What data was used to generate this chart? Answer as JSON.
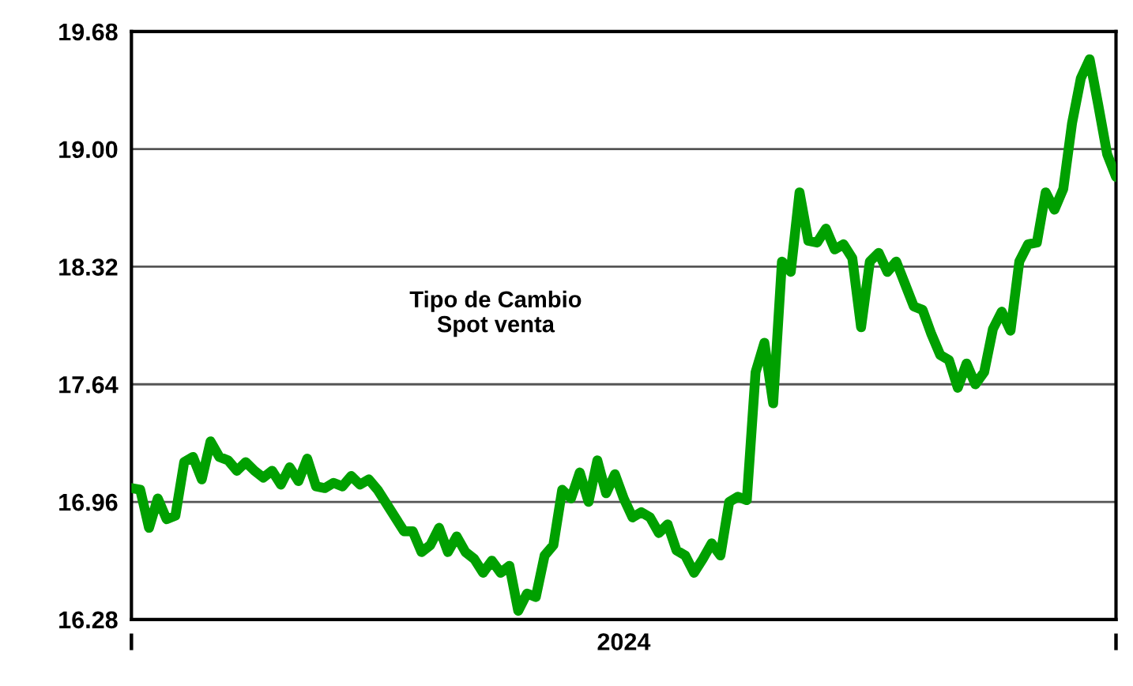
{
  "chart_data": {
    "type": "line",
    "annotations": [
      "Tipo de Cambio\nSpot venta"
    ],
    "categories": [
      "I",
      null,
      null,
      null,
      null,
      null,
      null,
      null,
      null,
      null,
      null,
      null,
      null,
      null,
      null,
      null,
      null,
      null,
      null,
      null,
      null,
      null,
      null,
      null,
      null,
      null,
      null,
      null,
      null,
      null,
      null,
      null,
      null,
      null,
      null,
      null,
      null,
      null,
      null,
      null,
      null,
      null,
      null,
      null,
      null,
      null,
      null,
      null,
      null,
      null,
      null,
      null,
      null,
      null,
      null,
      null,
      "2024",
      null,
      null,
      null,
      null,
      null,
      null,
      null,
      null,
      null,
      null,
      null,
      null,
      null,
      null,
      null,
      null,
      null,
      null,
      null,
      null,
      null,
      null,
      null,
      null,
      null,
      null,
      null,
      null,
      null,
      null,
      null,
      null,
      null,
      null,
      null,
      null,
      null,
      null,
      null,
      null,
      null,
      null,
      null,
      null,
      null,
      null,
      null,
      null,
      null,
      null,
      null,
      null,
      null,
      null,
      null,
      "I"
    ],
    "series": [
      {
        "color": "#00a000",
        "values": [
          17.04,
          17.03,
          16.81,
          16.98,
          16.86,
          16.88,
          17.19,
          17.22,
          17.09,
          17.31,
          17.22,
          17.2,
          17.14,
          17.19,
          17.14,
          17.1,
          17.14,
          17.06,
          17.16,
          17.08,
          17.21,
          17.05,
          17.04,
          17.07,
          17.05,
          17.11,
          17.06,
          17.09,
          17.03,
          16.95,
          16.87,
          16.79,
          16.79,
          16.67,
          16.71,
          16.81,
          16.67,
          16.76,
          16.67,
          16.63,
          16.55,
          16.62,
          16.55,
          16.59,
          16.33,
          16.43,
          16.41,
          16.65,
          16.71,
          17.03,
          16.98,
          17.13,
          16.96,
          17.2,
          17.01,
          17.12,
          16.98,
          16.87,
          16.9,
          16.87,
          16.78,
          16.83,
          16.68,
          16.65,
          16.55,
          16.63,
          16.72,
          16.65,
          16.96,
          16.99,
          16.97,
          17.71,
          17.88,
          17.53,
          18.35,
          18.29,
          18.75,
          18.47,
          18.46,
          18.54,
          18.42,
          18.45,
          18.37,
          17.97,
          18.35,
          18.4,
          18.29,
          18.35,
          18.22,
          18.09,
          18.07,
          17.93,
          17.81,
          17.78,
          17.62,
          17.76,
          17.64,
          17.71,
          17.96,
          18.06,
          17.95,
          18.35,
          18.45,
          18.46,
          18.75,
          18.65,
          18.77,
          19.15,
          19.41,
          19.52,
          19.25,
          18.97,
          18.84
        ]
      }
    ],
    "ylim": [
      16.28,
      19.68
    ],
    "yticks": [
      16.28,
      16.96,
      17.64,
      18.32,
      {
        "value": 19,
        "label": "19.00"
      },
      19.68
    ],
    "grid": "y",
    "marker": "none",
    "line_style": "solid"
  }
}
